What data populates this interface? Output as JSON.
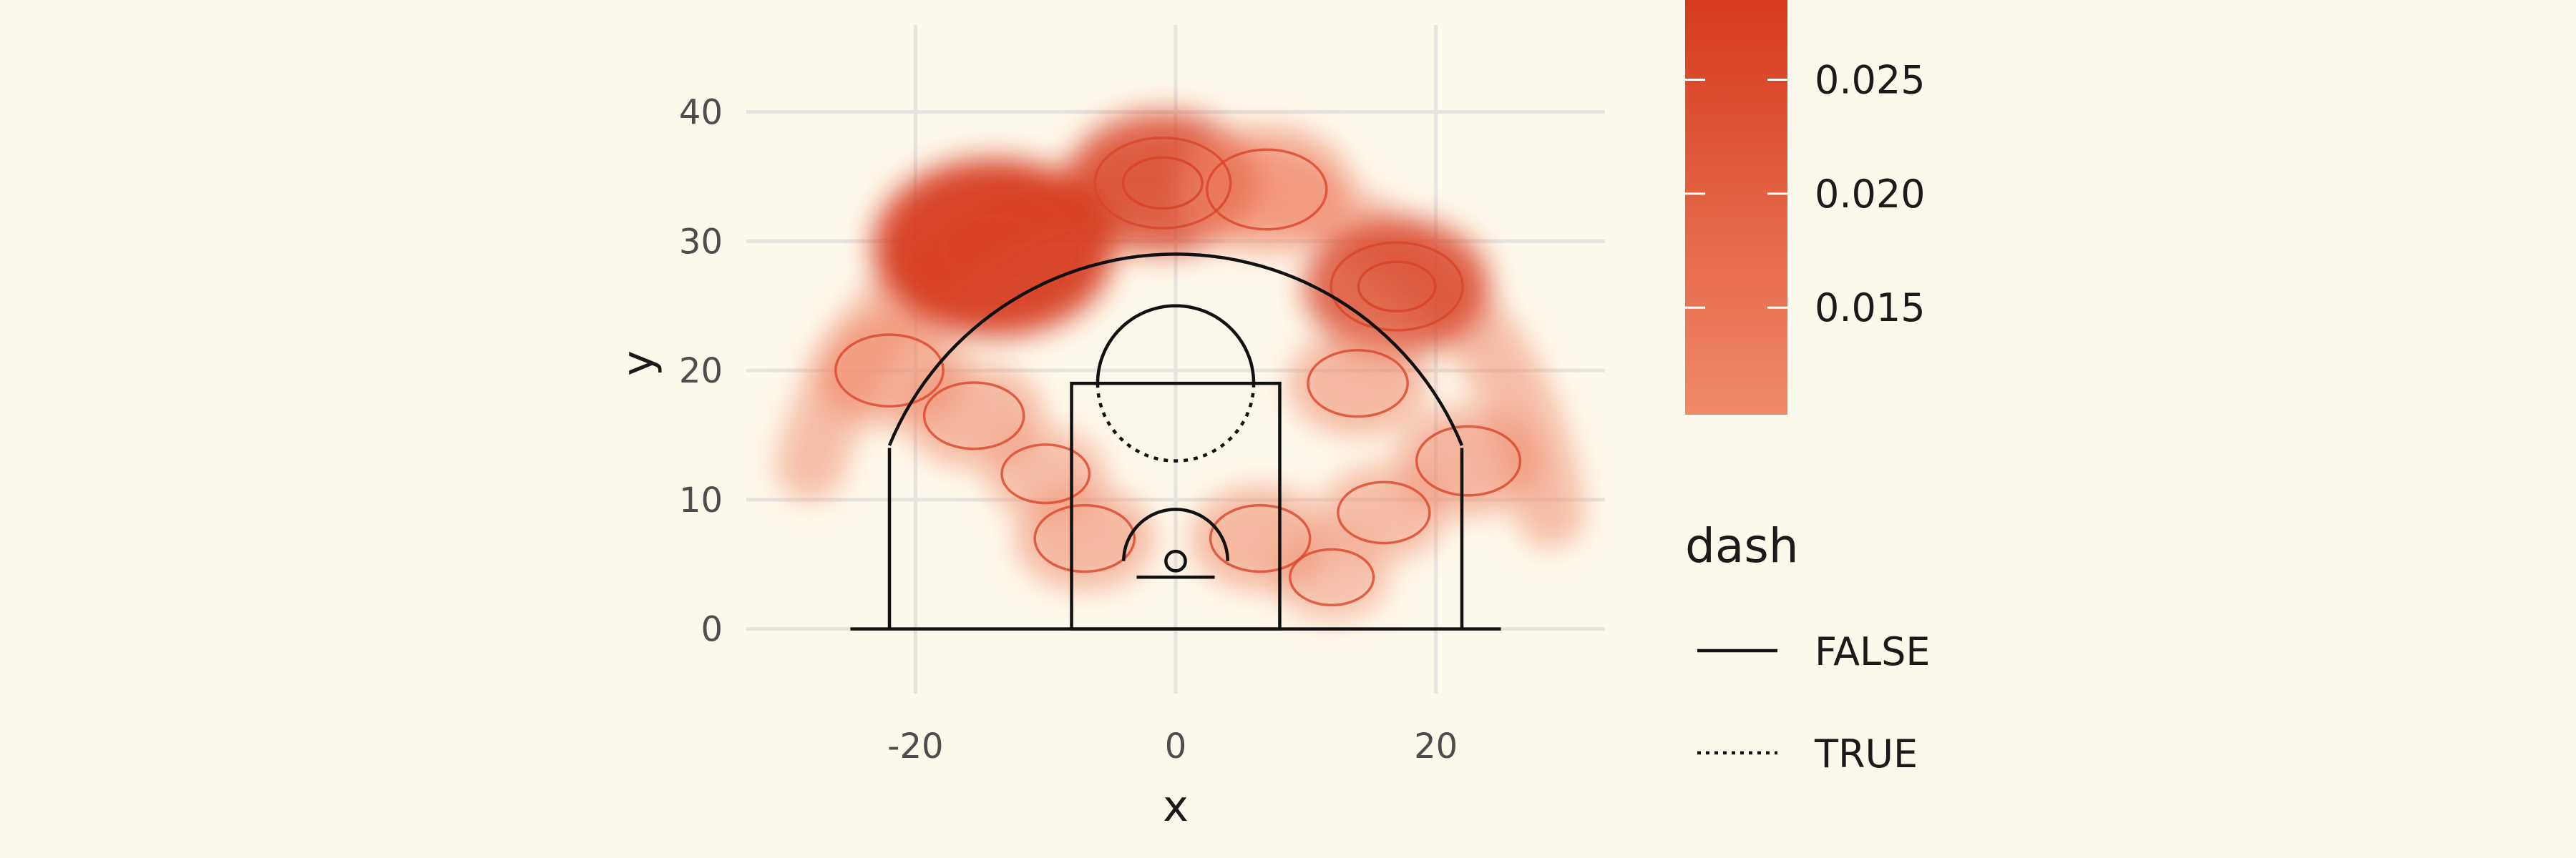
{
  "colors": {
    "background": "#fdf8ec",
    "density_low": "#f08a6a",
    "density_high": "#d63a1c",
    "contour": "#d9452a",
    "court": "#111111",
    "grid": "#e6e4df"
  },
  "chart_data": {
    "type": "heatmap",
    "subtype": "2d density map with contour lines over a basketball half-court outline",
    "title": "",
    "xlabel": "x",
    "ylabel": "y",
    "xlim": [
      -33,
      33
    ],
    "ylim": [
      -5,
      47
    ],
    "x_ticks": [
      -20,
      0,
      20
    ],
    "x_tick_labels": [
      "-20",
      "0",
      "20"
    ],
    "y_ticks": [
      0,
      10,
      20,
      30,
      40
    ],
    "y_tick_labels": [
      "0",
      "10",
      "20",
      "30",
      "40"
    ],
    "grid": true,
    "fill_legend": {
      "tick_values": [
        0.025,
        0.02,
        0.015
      ],
      "tick_labels": [
        "0.025",
        "0.020",
        "0.015"
      ],
      "position": "right"
    },
    "linetype_legend": {
      "title": "dash",
      "entries": [
        {
          "label": "FALSE",
          "linetype": "solid"
        },
        {
          "label": "TRUE",
          "linetype": "dotted"
        }
      ],
      "position": "right"
    },
    "density_hotspots": [
      {
        "x": -14,
        "y": 29.5,
        "level": 0.029
      },
      {
        "x": -1,
        "y": 34.5,
        "level": 0.021
      },
      {
        "x": 17,
        "y": 26.5,
        "level": 0.02
      },
      {
        "x": 7,
        "y": 34,
        "level": 0.017
      },
      {
        "x": -22,
        "y": 20,
        "level": 0.014
      },
      {
        "x": 22.5,
        "y": 13,
        "level": 0.013
      },
      {
        "x": -15.5,
        "y": 16.5,
        "level": 0.012
      },
      {
        "x": -7,
        "y": 7,
        "level": 0.012
      },
      {
        "x": 6.5,
        "y": 7,
        "level": 0.012
      },
      {
        "x": 14,
        "y": 19,
        "level": 0.012
      },
      {
        "x": 16,
        "y": 9,
        "level": 0.01
      },
      {
        "x": -10,
        "y": 12,
        "level": 0.009
      },
      {
        "x": 12,
        "y": 4,
        "level": 0.008
      }
    ],
    "court_elements": [
      {
        "name": "baseline",
        "x": [
          -25,
          25
        ],
        "y": [
          0,
          0
        ],
        "dash": false
      },
      {
        "name": "corner-three-left",
        "x": [
          -22,
          -22
        ],
        "y": [
          0,
          14
        ],
        "dash": false
      },
      {
        "name": "corner-three-right",
        "x": [
          22,
          22
        ],
        "y": [
          0,
          14
        ],
        "dash": false
      },
      {
        "name": "three-point-arc",
        "center": [
          0,
          5.25
        ],
        "radius": 23.75,
        "dash": false
      },
      {
        "name": "paint",
        "x": [
          -8,
          8
        ],
        "y": [
          0,
          19
        ],
        "dash": false
      },
      {
        "name": "free-throw-circle-top",
        "center": [
          0,
          19
        ],
        "radius": 6,
        "dash": false
      },
      {
        "name": "free-throw-circle-bottom",
        "center": [
          0,
          19
        ],
        "radius": 6,
        "dash": true
      },
      {
        "name": "restricted-area",
        "center": [
          0,
          5.25
        ],
        "radius": 4,
        "dash": false
      },
      {
        "name": "backboard",
        "x": [
          -3,
          3
        ],
        "y": [
          4,
          4
        ],
        "dash": false
      },
      {
        "name": "hoop",
        "center": [
          0,
          5.25
        ],
        "radius": 0.75,
        "dash": false
      }
    ]
  }
}
